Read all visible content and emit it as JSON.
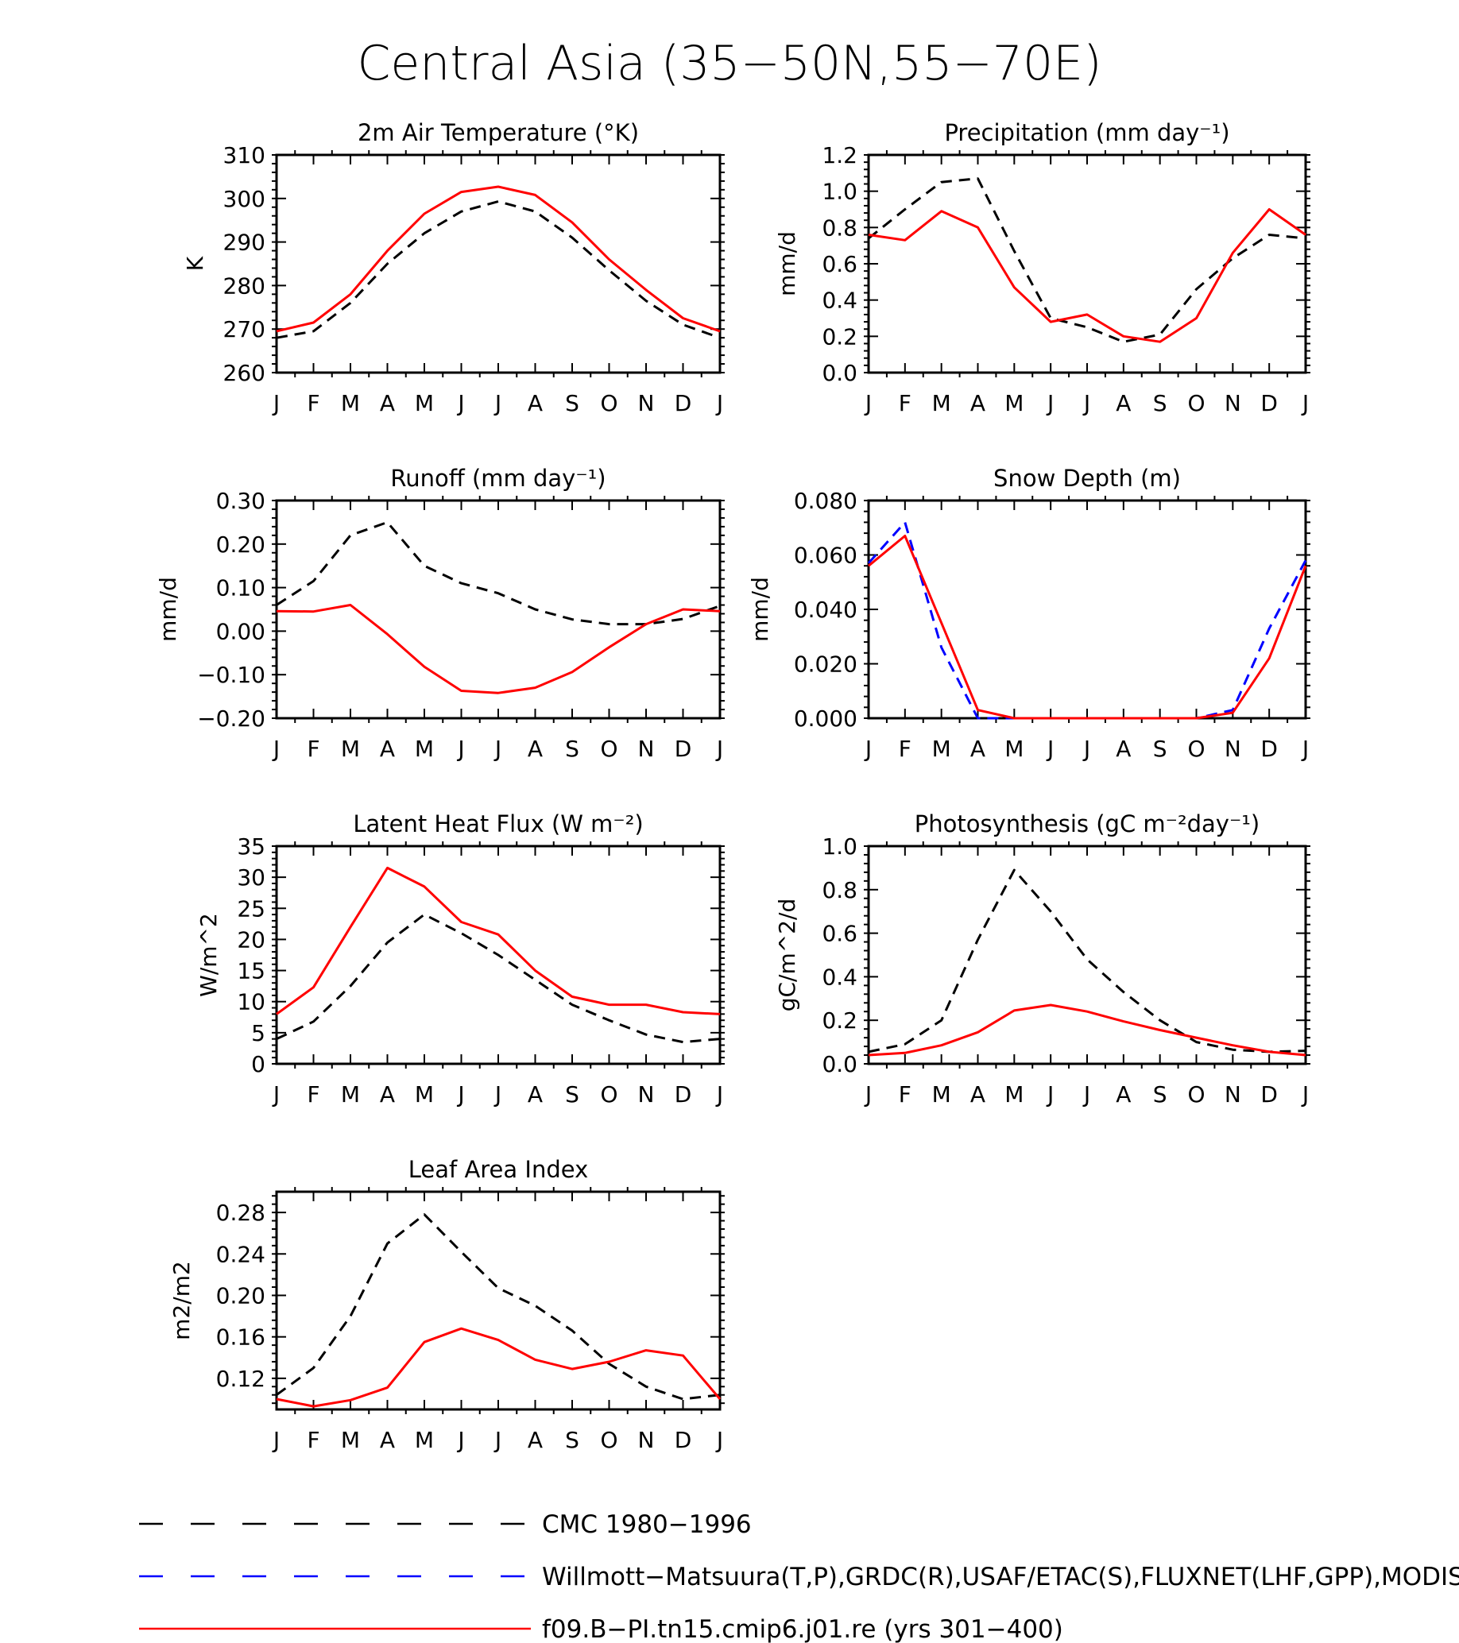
{
  "figure": {
    "title": "Central Asia (35−50N,55−70E)"
  },
  "legend": [
    {
      "name": "CMC 1980−1996",
      "color": "#000000",
      "dash": "long"
    },
    {
      "name": "Willmott−Matsuura(T,P),GRDC(R),USAF/ETAC(S),FLUXNET(LHF,GPP),MODIS(LAI)",
      "color": "#0000ff",
      "dash": "long"
    },
    {
      "name": "f09.B−PI.tn15.cmip6.j01.re (yrs 301−400)",
      "color": "#ff0000",
      "dash": "solid"
    }
  ],
  "chart_data": [
    {
      "type": "line",
      "title": "2m Air Temperature (°K)",
      "ylabel": "K",
      "ylim": [
        260,
        310
      ],
      "yticks": [
        "260",
        "270",
        "280",
        "290",
        "300",
        "310"
      ],
      "categories": [
        "J",
        "F",
        "M",
        "A",
        "M",
        "J",
        "J",
        "A",
        "S",
        "O",
        "N",
        "D",
        "J"
      ],
      "series": [
        {
          "color": "#000000",
          "dash": "dashed",
          "values": [
            268,
            269.5,
            276,
            285,
            292,
            297,
            299.3,
            297,
            291,
            283.5,
            276.5,
            271,
            268
          ]
        },
        {
          "color": "#ff0000",
          "dash": "solid",
          "values": [
            269.5,
            271.5,
            278,
            288,
            296.5,
            301.5,
            302.7,
            300.8,
            294.5,
            286,
            279,
            272.5,
            269.5
          ]
        }
      ]
    },
    {
      "type": "line",
      "title": "Precipitation (mm day⁻¹)",
      "ylabel": "mm/d",
      "ylim": [
        0,
        1.2
      ],
      "yticks": [
        "0.0",
        "0.2",
        "0.4",
        "0.6",
        "0.8",
        "1.0",
        "1.2"
      ],
      "categories": [
        "J",
        "F",
        "M",
        "A",
        "M",
        "J",
        "J",
        "A",
        "S",
        "O",
        "N",
        "D",
        "J"
      ],
      "series": [
        {
          "color": "#000000",
          "dash": "dashed",
          "values": [
            0.74,
            0.9,
            1.05,
            1.07,
            0.67,
            0.3,
            0.25,
            0.17,
            0.21,
            0.46,
            0.63,
            0.76,
            0.74
          ]
        },
        {
          "color": "#ff0000",
          "dash": "solid",
          "values": [
            0.76,
            0.73,
            0.89,
            0.8,
            0.47,
            0.28,
            0.32,
            0.2,
            0.17,
            0.3,
            0.66,
            0.9,
            0.76
          ]
        }
      ]
    },
    {
      "type": "line",
      "title": "Runoff (mm day⁻¹)",
      "ylabel": "mm/d",
      "ylim": [
        -0.2,
        0.3
      ],
      "yticks": [
        "−0.20",
        "−0.10",
        "0.00",
        "0.10",
        "0.20",
        "0.30"
      ],
      "categories": [
        "J",
        "F",
        "M",
        "A",
        "M",
        "J",
        "J",
        "A",
        "S",
        "O",
        "N",
        "D",
        "J"
      ],
      "series": [
        {
          "color": "#000000",
          "dash": "dashed",
          "values": [
            0.06,
            0.115,
            0.22,
            0.25,
            0.15,
            0.11,
            0.087,
            0.05,
            0.027,
            0.016,
            0.016,
            0.028,
            0.058
          ]
        },
        {
          "color": "#ff0000",
          "dash": "solid",
          "values": [
            0.046,
            0.045,
            0.06,
            -0.007,
            -0.082,
            -0.137,
            -0.142,
            -0.13,
            -0.094,
            -0.037,
            0.016,
            0.05,
            0.046
          ]
        }
      ]
    },
    {
      "type": "line",
      "title": "Snow Depth (m)",
      "ylabel": "mm/d",
      "ylim": [
        0,
        0.08
      ],
      "yticks": [
        "0.000",
        "0.020",
        "0.040",
        "0.060",
        "0.080"
      ],
      "categories": [
        "J",
        "F",
        "M",
        "A",
        "M",
        "J",
        "J",
        "A",
        "S",
        "O",
        "N",
        "D",
        "J"
      ],
      "series": [
        {
          "color": "#000000",
          "dash": "dashed",
          "values": [
            0,
            0,
            0,
            0,
            0,
            0,
            0,
            0,
            0,
            0,
            0,
            0,
            0
          ]
        },
        {
          "color": "#0000ff",
          "dash": "dashed",
          "values": [
            0.057,
            0.072,
            0.026,
            0,
            0,
            0,
            0,
            0,
            0,
            0,
            0.003,
            0.033,
            0.058
          ]
        },
        {
          "color": "#ff0000",
          "dash": "solid",
          "values": [
            0.056,
            0.067,
            0.035,
            0.003,
            0,
            0,
            0,
            0,
            0,
            0,
            0.002,
            0.022,
            0.056
          ]
        }
      ]
    },
    {
      "type": "line",
      "title": "Latent Heat Flux (W m⁻²)",
      "ylabel": "W/m^2",
      "ylim": [
        0,
        35
      ],
      "yticks": [
        "0",
        "5",
        "10",
        "15",
        "20",
        "25",
        "30",
        "35"
      ],
      "categories": [
        "J",
        "F",
        "M",
        "A",
        "M",
        "J",
        "J",
        "A",
        "S",
        "O",
        "N",
        "D",
        "J"
      ],
      "series": [
        {
          "color": "#000000",
          "dash": "dashed",
          "values": [
            4,
            6.8,
            12.5,
            19.5,
            24,
            21,
            17.5,
            13.5,
            9.5,
            7,
            4.7,
            3.5,
            4
          ]
        },
        {
          "color": "#ff0000",
          "dash": "solid",
          "values": [
            8,
            12.3,
            22,
            31.5,
            28.5,
            22.8,
            20.8,
            15,
            10.8,
            9.5,
            9.5,
            8.3,
            8
          ]
        }
      ]
    },
    {
      "type": "line",
      "title": "Photosynthesis (gC m⁻²day⁻¹)",
      "ylabel": "gC/m^2/d",
      "ylim": [
        0,
        1
      ],
      "yticks": [
        "0.0",
        "0.2",
        "0.4",
        "0.6",
        "0.8",
        "1.0"
      ],
      "categories": [
        "J",
        "F",
        "M",
        "A",
        "M",
        "J",
        "J",
        "A",
        "S",
        "O",
        "N",
        "D",
        "J"
      ],
      "series": [
        {
          "color": "#000000",
          "dash": "dashed",
          "values": [
            0.055,
            0.09,
            0.2,
            0.57,
            0.89,
            0.7,
            0.48,
            0.33,
            0.2,
            0.1,
            0.065,
            0.055,
            0.06
          ]
        },
        {
          "color": "#ff0000",
          "dash": "solid",
          "values": [
            0.04,
            0.05,
            0.085,
            0.145,
            0.245,
            0.27,
            0.24,
            0.195,
            0.155,
            0.12,
            0.085,
            0.055,
            0.04
          ]
        }
      ]
    },
    {
      "type": "line",
      "title": "Leaf Area Index",
      "ylabel": "m2/m2",
      "ylim": [
        0.09,
        0.3
      ],
      "yticks": [
        "0.12",
        "0.16",
        "0.20",
        "0.24",
        "0.28"
      ],
      "categories": [
        "J",
        "F",
        "M",
        "A",
        "M",
        "J",
        "J",
        "A",
        "S",
        "O",
        "N",
        "D",
        "J"
      ],
      "series": [
        {
          "color": "#000000",
          "dash": "dashed",
          "values": [
            0.104,
            0.13,
            0.18,
            0.25,
            0.278,
            0.242,
            0.207,
            0.19,
            0.166,
            0.134,
            0.112,
            0.1,
            0.104
          ]
        },
        {
          "color": "#ff0000",
          "dash": "solid",
          "values": [
            0.1,
            0.093,
            0.099,
            0.111,
            0.155,
            0.168,
            0.157,
            0.138,
            0.129,
            0.136,
            0.147,
            0.142,
            0.1
          ]
        }
      ]
    }
  ]
}
